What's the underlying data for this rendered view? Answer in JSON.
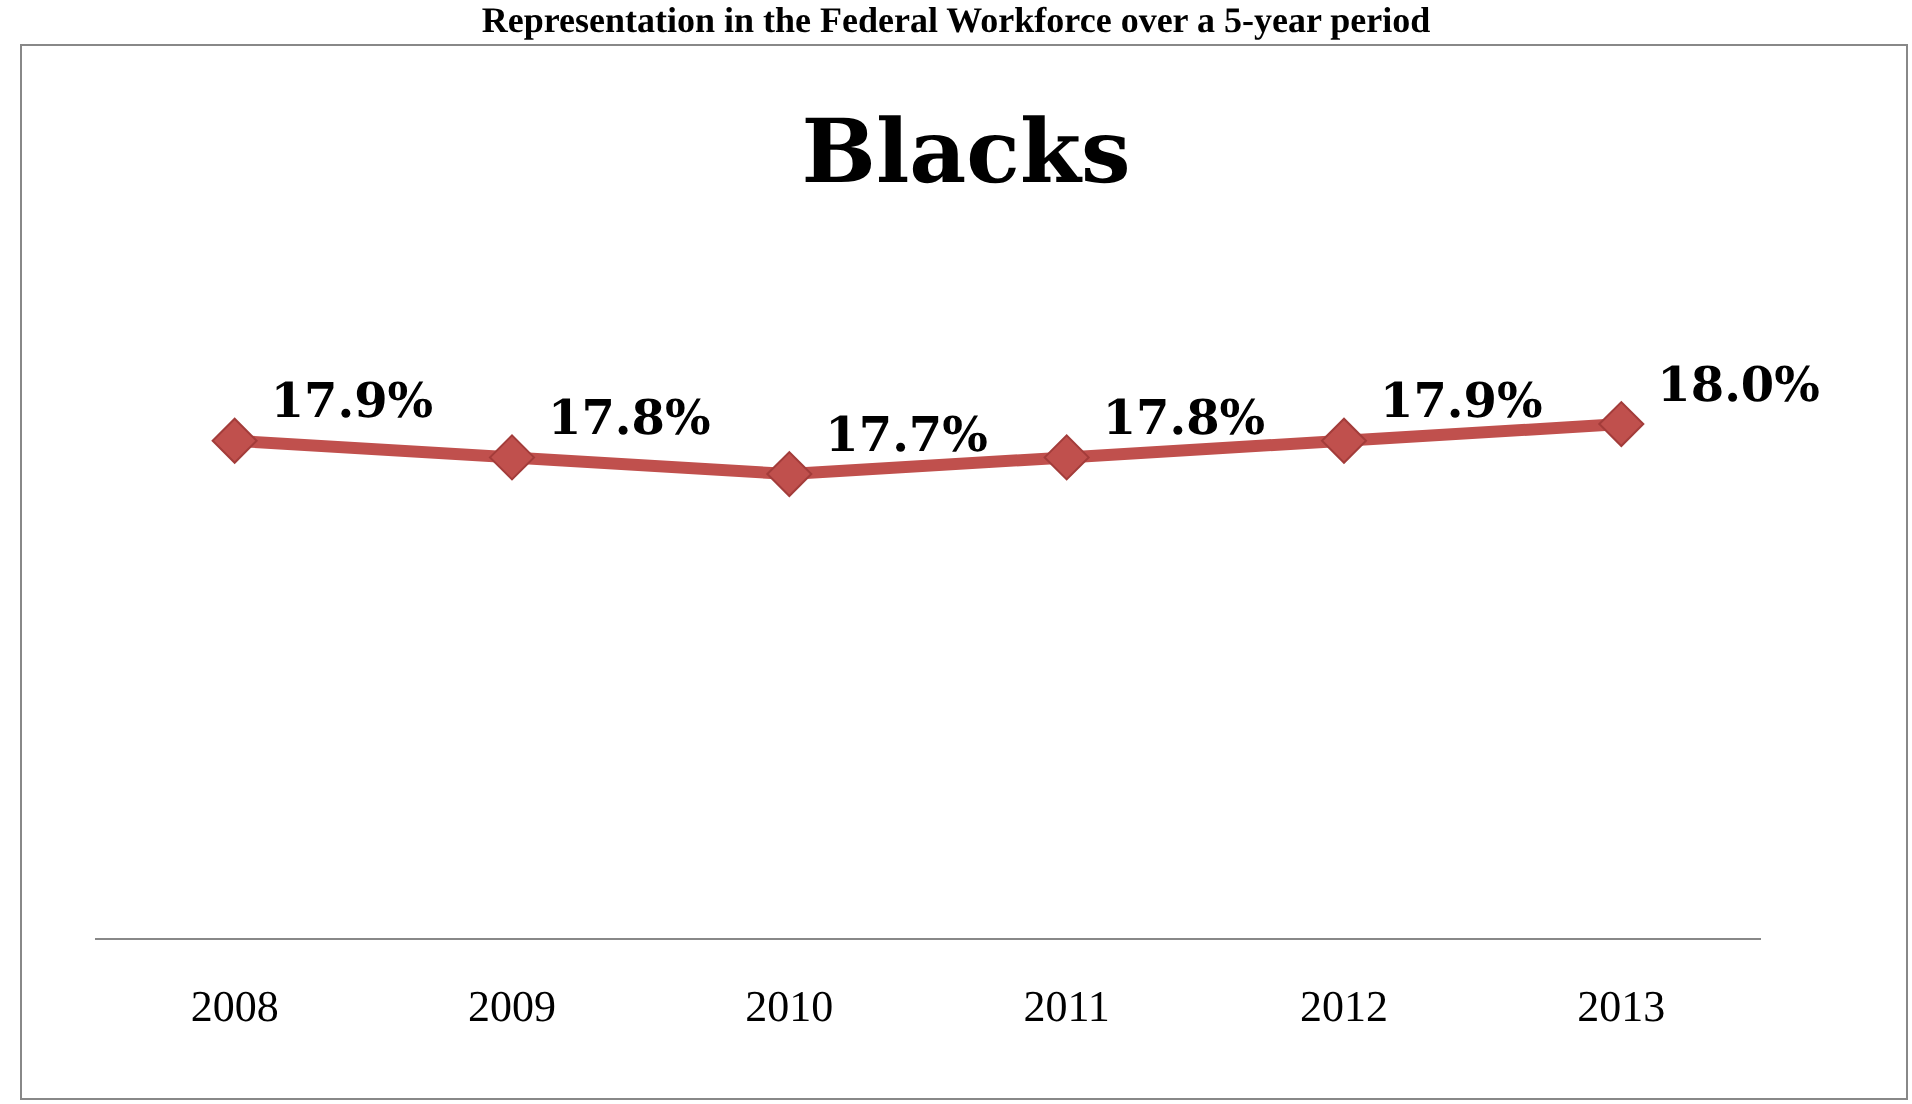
{
  "chart_data": {
    "type": "line",
    "title": "Blacks",
    "subtitle": "Representation in the Federal Workforce over a 5-year period",
    "categories": [
      "2008",
      "2009",
      "2010",
      "2011",
      "2012",
      "2013"
    ],
    "series": [
      {
        "color": "#c0504d",
        "values": [
          17.9,
          17.8,
          17.7,
          17.8,
          17.9,
          18.0
        ],
        "value_labels": [
          "17.9%",
          "17.8%",
          "17.7%",
          "17.8%",
          "17.9%",
          "18.0%"
        ]
      }
    ],
    "tick_labels": "x",
    "grid": false,
    "legend": false,
    "marker": "diamond",
    "line_style": "solid"
  }
}
